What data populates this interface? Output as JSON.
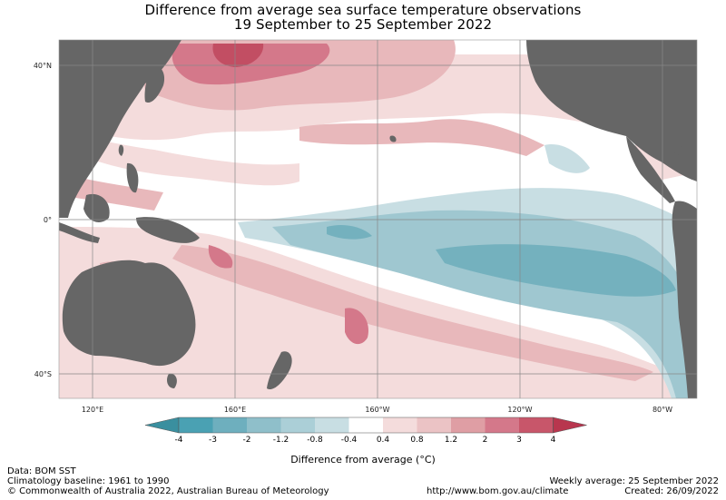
{
  "title": {
    "line1": "Difference from average sea surface temperature observations",
    "line2": "19 September to 25 September 2022"
  },
  "map": {
    "latitude_labels": [
      "40°N",
      "0°",
      "40°S"
    ],
    "longitude_labels": [
      "120°E",
      "160°E",
      "160°W",
      "120°W",
      "80°W"
    ],
    "colors": {
      "land": "#666666",
      "ocean_neutral": "#ffffff",
      "grid": "#888888"
    }
  },
  "colorbar": {
    "ticks": [
      "-4",
      "-3",
      "-2",
      "-1.2",
      "-0.8",
      "-0.4",
      "0.4",
      "0.8",
      "1.2",
      "2",
      "3",
      "4"
    ],
    "colors": [
      "#4aa1b3",
      "#6eafbe",
      "#8fbfca",
      "#abcfd7",
      "#c8dee3",
      "#ffffff",
      "#f4dcdc",
      "#ebc3c5",
      "#df9ea4",
      "#d4788a",
      "#c8566a"
    ],
    "under_color": "#3a8f9f",
    "over_color": "#b8364e",
    "label": "Difference from average (°C)"
  },
  "footer": {
    "data_source": "Data: BOM SST",
    "baseline": "Climatology baseline: 1961 to 1990",
    "copyright": "© Commonwealth of Australia 2022, Australian Bureau of Meteorology",
    "url": "http://www.bom.gov.au/climate",
    "weekly_average": "Weekly average: 25 September 2022",
    "created": "Created: 26/09/2022"
  }
}
